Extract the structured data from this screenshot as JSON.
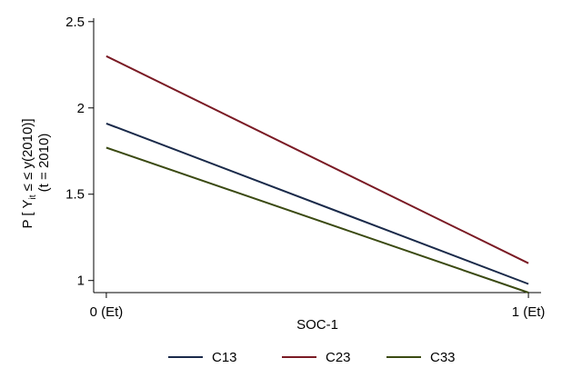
{
  "chart_data": {
    "type": "line",
    "xlabel": "SOC-1",
    "ylabel": {
      "main_prefix": "P [ Y",
      "main_subscript": "it",
      "main_suffix": " ≤ ≤ y(2010)]",
      "second_line": "(t = 2010)"
    },
    "x": [
      0,
      1
    ],
    "x_ticks": [
      {
        "value": 0,
        "label": "0 (Et)"
      },
      {
        "value": 1,
        "label": "1 (Et)"
      }
    ],
    "xlim": [
      -0.03,
      1.03
    ],
    "ylim": [
      0.93,
      2.52
    ],
    "y_ticks": [
      {
        "value": 1,
        "label": "1"
      },
      {
        "value": 1.5,
        "label": "1.5"
      },
      {
        "value": 2,
        "label": "2"
      },
      {
        "value": 2.5,
        "label": "2.5"
      }
    ],
    "series": [
      {
        "name": "C13",
        "color": "#1a2a4a",
        "points": [
          [
            0,
            1.91
          ],
          [
            1,
            0.98
          ]
        ]
      },
      {
        "name": "C23",
        "color": "#7a1a24",
        "points": [
          [
            0,
            2.3
          ],
          [
            1,
            1.1
          ]
        ]
      },
      {
        "name": "C33",
        "color": "#3b4a12",
        "points": [
          [
            0,
            1.77
          ],
          [
            1,
            0.93
          ]
        ]
      }
    ],
    "grid": false,
    "legend_position": "bottom"
  }
}
